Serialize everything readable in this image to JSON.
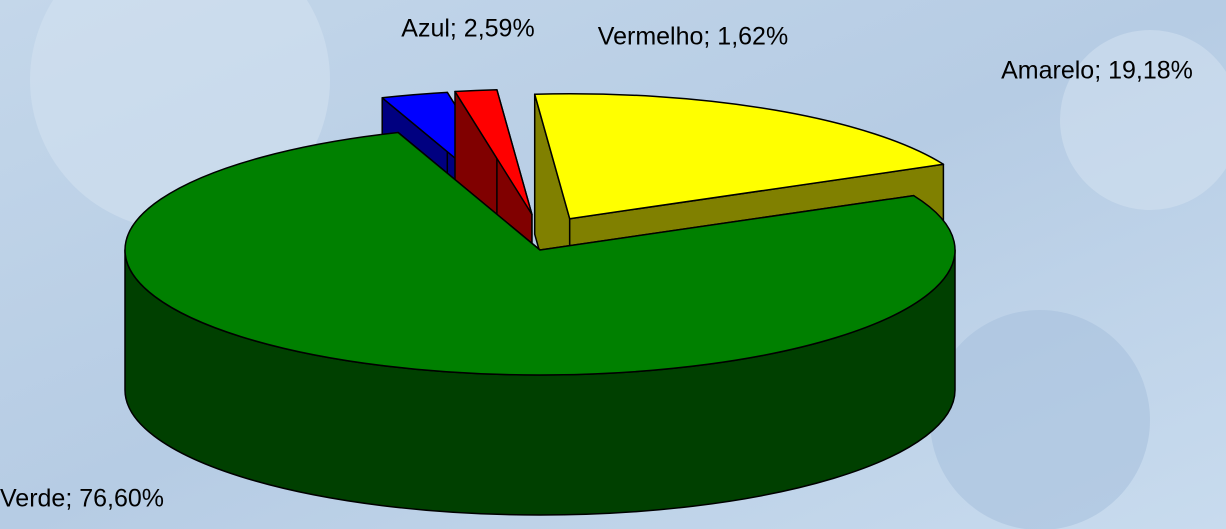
{
  "chart_data": {
    "type": "pie3d",
    "values": [
      2.59,
      1.62,
      19.18,
      76.6
    ],
    "value_labels": [
      "Azul; 2,59%",
      "Vermelho; 1,62%",
      "Amarelo; 19,18%",
      "Verde; 76,60%"
    ],
    "colors": [
      "#0000ff",
      "#ff0000",
      "#ffff00",
      "#008000"
    ],
    "side_colors": [
      "#000080",
      "#800000",
      "#808000",
      "#004000"
    ]
  }
}
